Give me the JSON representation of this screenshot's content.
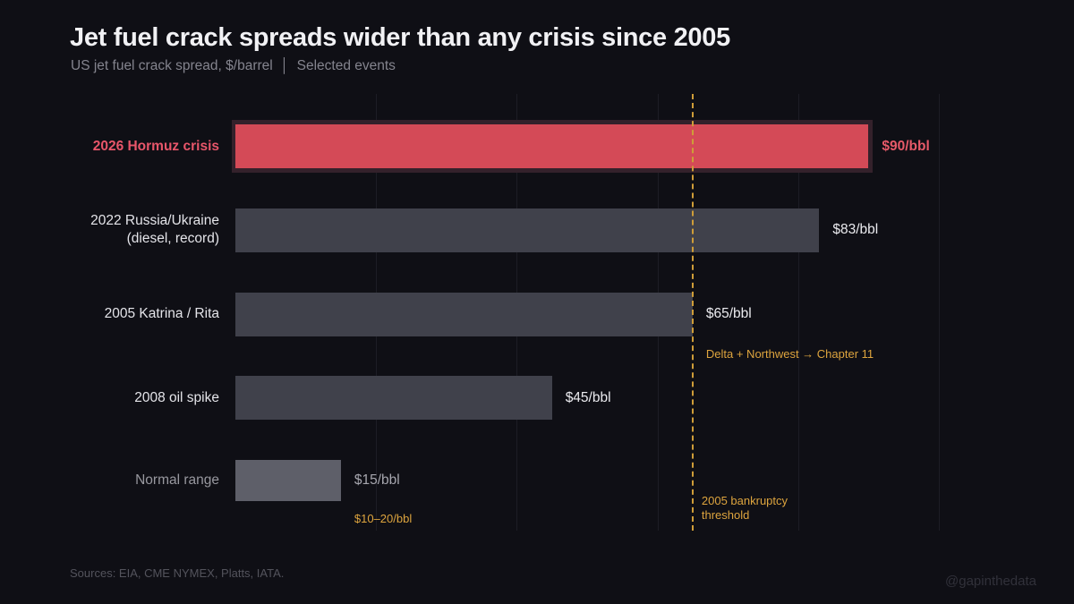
{
  "header": {
    "title": "Jet fuel crack spreads wider than any crisis since 2005",
    "subtitle": "US jet fuel crack spread, $/barrel  │  Selected events"
  },
  "chart_data": {
    "type": "bar",
    "orientation": "horizontal",
    "title": "Jet fuel crack spreads wider than any crisis since 2005",
    "xlabel": "$/barrel",
    "xlim": [
      0,
      100
    ],
    "gridlines": [
      20,
      40,
      60,
      80,
      100
    ],
    "categories": [
      "2026 Hormuz crisis",
      "2022 Russia/Ukraine (diesel, record)",
      "2005 Katrina / Rita",
      "2008 oil spike",
      "Normal range"
    ],
    "values": [
      90,
      83,
      65,
      45,
      15
    ],
    "rows": [
      {
        "label_lines": [
          "2026 Hormuz crisis"
        ],
        "value": 90,
        "value_label": "$90/bbl",
        "style": "highlight"
      },
      {
        "label_lines": [
          "2022 Russia/Ukraine",
          "(diesel, record)"
        ],
        "value": 83,
        "value_label": "$83/bbl",
        "style": "default"
      },
      {
        "label_lines": [
          "2005 Katrina / Rita"
        ],
        "value": 65,
        "value_label": "$65/bbl",
        "style": "default"
      },
      {
        "label_lines": [
          "2008 oil spike"
        ],
        "value": 45,
        "value_label": "$45/bbl",
        "style": "default"
      },
      {
        "label_lines": [
          "Normal range"
        ],
        "value": 15,
        "value_label": "$15/bbl",
        "style": "muted"
      }
    ],
    "threshold": {
      "value": 65,
      "label_lines": [
        "2005 bankruptcy",
        "threshold"
      ]
    },
    "annotations": [
      {
        "text": "Delta + Northwest → Chapter 11",
        "x": 65,
        "row": 2
      },
      {
        "text": "$10–20/bbl",
        "x": 15,
        "row": 4
      }
    ]
  },
  "colors": {
    "background": "#0f0f15",
    "highlight_bar": "#d44a57",
    "highlight_glow": "#34212b",
    "highlight_text": "#e8566a",
    "default_bar": "#40414b",
    "muted_bar": "#5e5f69",
    "amber": "#dda43e",
    "gridline": "#1d1d25",
    "title_text": "#f1f1f4",
    "subtitle_text": "#84848e"
  },
  "footer": {
    "sources": "Sources: EIA, CME NYMEX, Platts, IATA.",
    "handle": "@gapinthedata"
  }
}
